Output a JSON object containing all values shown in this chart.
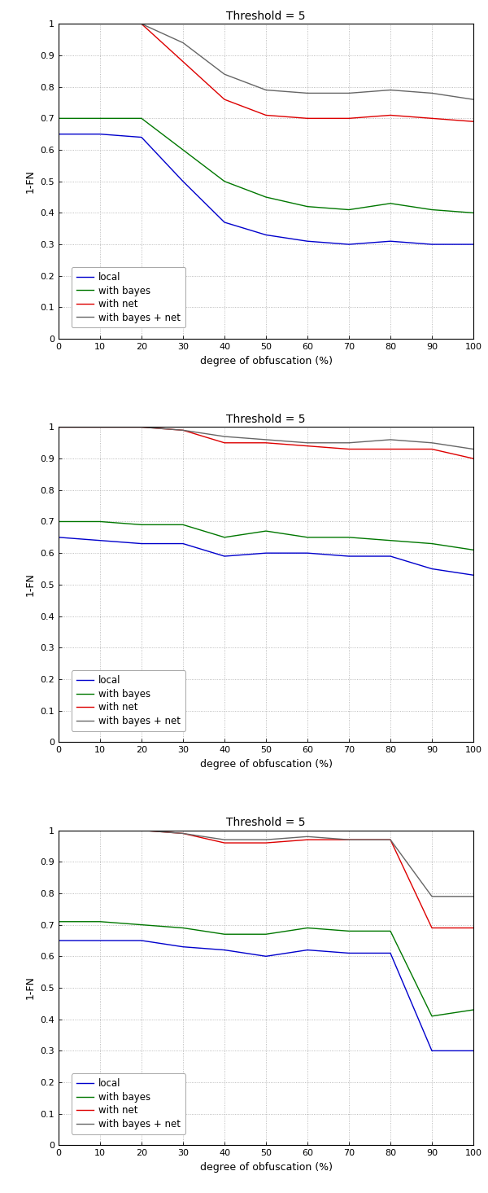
{
  "title": "Threshold = 5",
  "xlabel": "degree of obfuscation (%)",
  "ylabel": "1-FN",
  "legend_labels": [
    "local",
    "with bayes",
    "with net",
    "with bayes + net"
  ],
  "colors": [
    "#0000cc",
    "#007700",
    "#dd0000",
    "#666666"
  ],
  "x": [
    0,
    10,
    20,
    30,
    40,
    50,
    60,
    70,
    80,
    90,
    100
  ],
  "plot1": {
    "local": [
      0.65,
      0.65,
      0.64,
      0.5,
      0.37,
      0.33,
      0.31,
      0.3,
      0.31,
      0.3,
      0.3
    ],
    "with_bayes": [
      0.7,
      0.7,
      0.7,
      0.6,
      0.5,
      0.45,
      0.42,
      0.41,
      0.43,
      0.41,
      0.4
    ],
    "with_net": [
      1.0,
      1.0,
      1.0,
      0.88,
      0.76,
      0.71,
      0.7,
      0.7,
      0.71,
      0.7,
      0.69
    ],
    "with_bayes_net": [
      1.0,
      1.0,
      1.0,
      0.94,
      0.84,
      0.79,
      0.78,
      0.78,
      0.79,
      0.78,
      0.76
    ]
  },
  "plot2": {
    "local": [
      0.65,
      0.64,
      0.63,
      0.63,
      0.59,
      0.6,
      0.6,
      0.59,
      0.59,
      0.55,
      0.53
    ],
    "with_bayes": [
      0.7,
      0.7,
      0.69,
      0.69,
      0.65,
      0.67,
      0.65,
      0.65,
      0.64,
      0.63,
      0.61
    ],
    "with_net": [
      1.0,
      1.0,
      1.0,
      0.99,
      0.95,
      0.95,
      0.94,
      0.93,
      0.93,
      0.93,
      0.9
    ],
    "with_bayes_net": [
      1.0,
      1.0,
      1.0,
      0.99,
      0.97,
      0.96,
      0.95,
      0.95,
      0.96,
      0.95,
      0.93
    ]
  },
  "plot3": {
    "local": [
      0.65,
      0.65,
      0.65,
      0.63,
      0.62,
      0.6,
      0.62,
      0.61,
      0.61,
      0.3,
      0.3
    ],
    "with_bayes": [
      0.71,
      0.71,
      0.7,
      0.69,
      0.67,
      0.67,
      0.69,
      0.68,
      0.68,
      0.41,
      0.43
    ],
    "with_net": [
      1.0,
      1.0,
      1.0,
      0.99,
      0.96,
      0.96,
      0.97,
      0.97,
      0.97,
      0.69,
      0.69
    ],
    "with_bayes_net": [
      1.0,
      1.0,
      1.0,
      0.99,
      0.97,
      0.97,
      0.98,
      0.97,
      0.97,
      0.79,
      0.79
    ]
  }
}
